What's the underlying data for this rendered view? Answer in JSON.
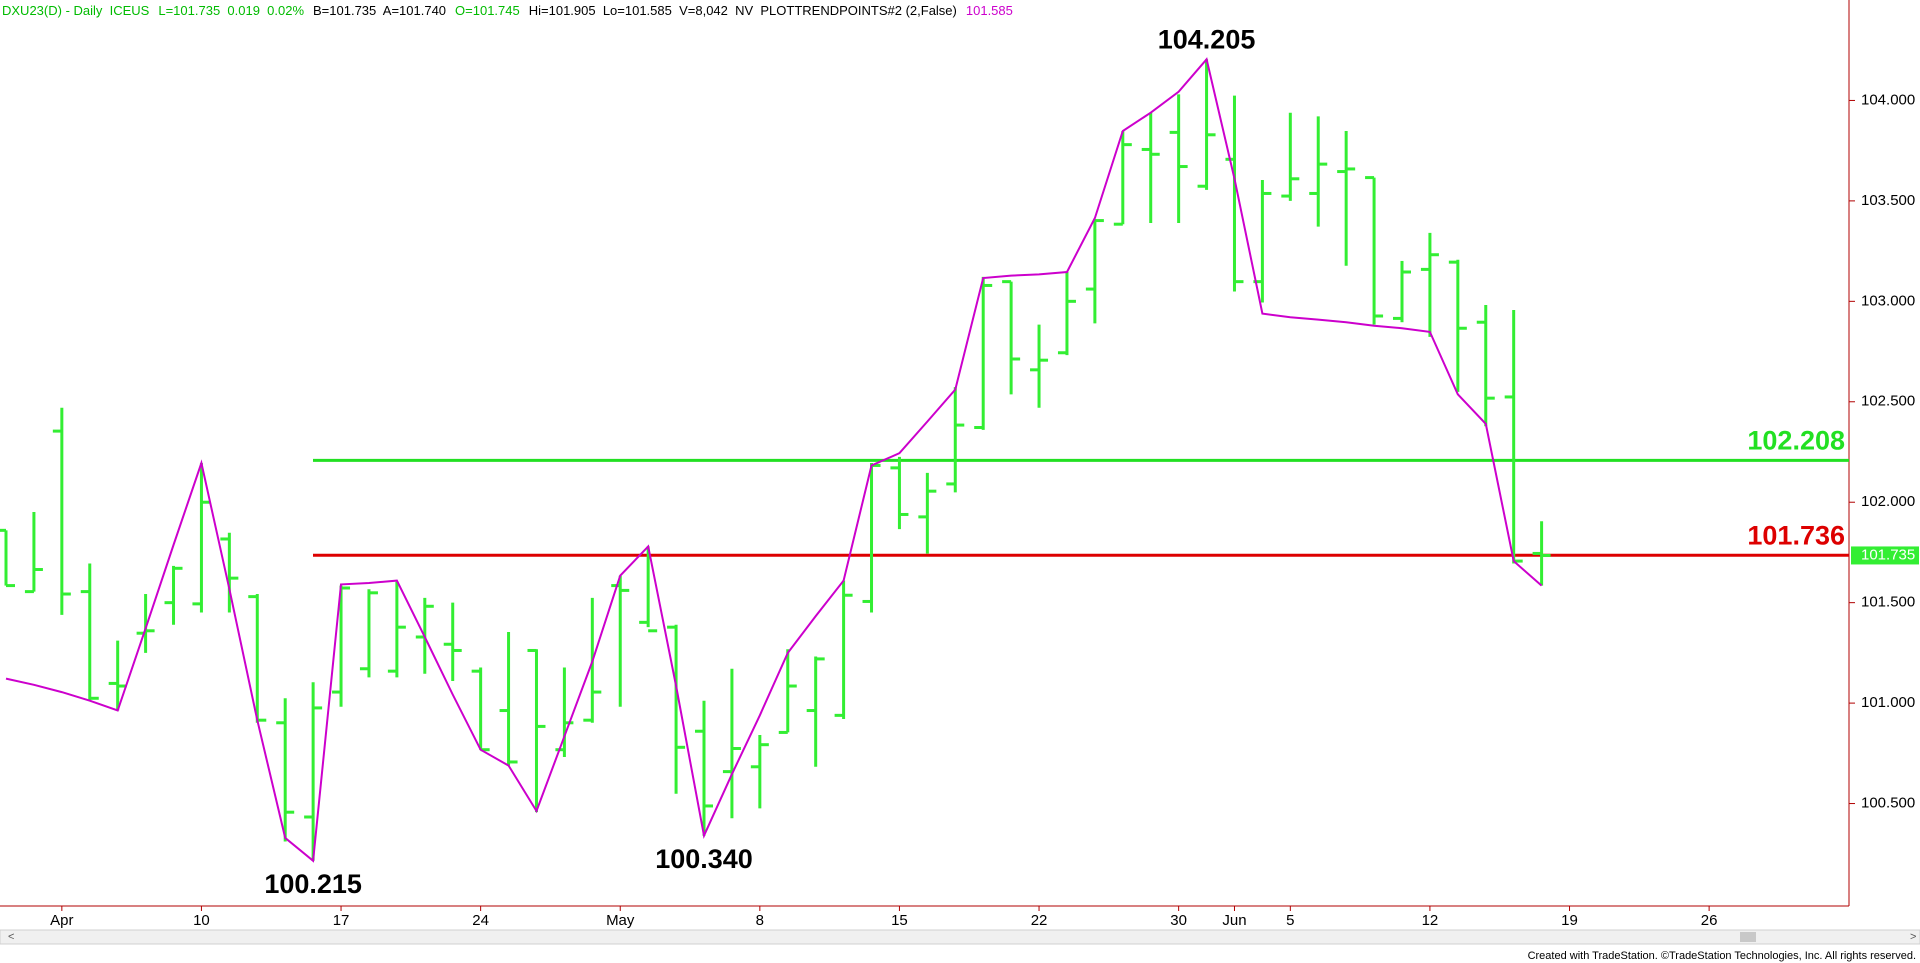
{
  "chart_data": {
    "type": "ohlc",
    "header": [
      {
        "text": "DXU23(D) - Daily  ICEUS",
        "color": "#00bb00"
      },
      {
        "text": "L=101.735  0.019  0.02%",
        "color": "#00bb00"
      },
      {
        "text": "B=101.735  A=101.740",
        "color": "#000000"
      },
      {
        "text": "O=101.745",
        "color": "#00bb00"
      },
      {
        "text": "Hi=101.905  Lo=101.585  V=8,042  NV  PLOTTRENDPOINTS#2 (2,False)",
        "color": "#000000"
      },
      {
        "text": "101.585",
        "color": "#cc00cc"
      }
    ],
    "footer": "Created with TradeStation. ©TradeStation Technologies, Inc. All rights reserved.",
    "categories": [
      null,
      null,
      "Apr",
      null,
      null,
      null,
      null,
      "10",
      null,
      null,
      null,
      null,
      "17",
      null,
      null,
      null,
      null,
      "24",
      null,
      null,
      null,
      null,
      "May",
      null,
      null,
      null,
      null,
      "8",
      null,
      null,
      null,
      null,
      "15",
      null,
      null,
      null,
      null,
      "22",
      null,
      null,
      null,
      null,
      "30",
      null,
      "Jun",
      null,
      "5",
      null,
      null,
      null,
      null,
      "12",
      null,
      null,
      null,
      null,
      "19",
      null,
      null,
      null,
      null,
      "26",
      null,
      null,
      null,
      null
    ],
    "ohlc": {
      "color": "#33ee33",
      "open": [
        101.86,
        101.555,
        102.354,
        101.555,
        101.098,
        101.348,
        101.5,
        101.494,
        101.817,
        101.53,
        100.902,
        100.433,
        101.055,
        101.171,
        101.159,
        101.329,
        101.293,
        101.159,
        100.963,
        101.262,
        100.768,
        100.915,
        101.585,
        101.402,
        101.378,
        100.86,
        100.659,
        100.683,
        100.854,
        100.963,
        100.939,
        101.506,
        102.171,
        101.927,
        102.091,
        102.372,
        103.098,
        102.659,
        102.744,
        103.061,
        103.384,
        103.756,
        103.841,
        103.573,
        103.707,
        103.098,
        103.524,
        103.537,
        103.646,
        103.616,
        102.915,
        103.159,
        103.195,
        102.896,
        102.524,
        101.745,
        null,
        null,
        null,
        null,
        null,
        null,
        null,
        null,
        null,
        null
      ],
      "high": [
        101.86,
        101.951,
        102.47,
        101.695,
        101.311,
        101.543,
        101.683,
        102.195,
        101.848,
        101.543,
        101.024,
        101.104,
        101.585,
        101.567,
        101.604,
        101.524,
        101.5,
        101.177,
        101.354,
        101.268,
        101.177,
        101.524,
        101.634,
        101.78,
        101.39,
        101.012,
        101.171,
        100.841,
        101.268,
        101.232,
        101.61,
        102.195,
        102.226,
        102.146,
        102.573,
        103.122,
        103.098,
        102.884,
        103.146,
        103.409,
        103.848,
        103.939,
        104.03,
        104.205,
        104.024,
        103.604,
        103.939,
        103.921,
        103.848,
        103.616,
        103.201,
        103.341,
        103.207,
        102.982,
        102.957,
        101.905,
        null,
        null,
        null,
        null,
        null,
        null,
        null,
        null,
        null,
        null
      ],
      "low": [
        101.585,
        101.555,
        101.439,
        101.012,
        100.963,
        101.25,
        101.39,
        101.451,
        101.451,
        100.902,
        100.311,
        100.215,
        100.982,
        101.128,
        101.128,
        101.146,
        101.11,
        100.768,
        100.689,
        100.457,
        100.732,
        100.902,
        100.982,
        101.378,
        100.549,
        100.34,
        100.427,
        100.476,
        100.854,
        100.683,
        100.921,
        101.451,
        101.866,
        101.744,
        102.049,
        102.36,
        102.537,
        102.47,
        102.732,
        102.89,
        103.384,
        103.39,
        103.39,
        103.555,
        103.049,
        102.994,
        103.5,
        103.372,
        103.177,
        102.884,
        102.896,
        102.823,
        102.549,
        102.378,
        101.695,
        101.585,
        null,
        null,
        null,
        null,
        null,
        null,
        null,
        null,
        null,
        null
      ],
      "close": [
        101.585,
        101.665,
        101.543,
        101.024,
        101.085,
        101.36,
        101.671,
        102.0,
        101.622,
        100.915,
        100.457,
        100.976,
        101.573,
        101.549,
        101.378,
        101.482,
        101.262,
        100.768,
        100.707,
        100.884,
        100.902,
        101.055,
        101.561,
        101.36,
        100.78,
        100.488,
        100.774,
        100.793,
        101.085,
        101.22,
        101.537,
        102.183,
        101.939,
        102.055,
        102.384,
        103.079,
        102.713,
        102.707,
        103.0,
        103.402,
        103.78,
        103.732,
        103.671,
        103.829,
        103.098,
        103.537,
        103.61,
        103.683,
        103.659,
        102.927,
        103.146,
        103.232,
        102.866,
        102.518,
        101.707,
        101.735,
        null,
        null,
        null,
        null,
        null,
        null,
        null,
        null,
        null,
        null
      ],
      "high_labels": [
        null,
        null,
        null,
        null,
        null,
        null,
        null,
        null,
        null,
        null,
        null,
        null,
        null,
        null,
        null,
        null,
        null,
        null,
        null,
        null,
        null,
        null,
        null,
        null,
        null,
        null,
        null,
        null,
        null,
        null,
        null,
        null,
        null,
        null,
        null,
        null,
        null,
        null,
        null,
        null,
        null,
        null,
        null,
        "104.205",
        null,
        null,
        null,
        null,
        null,
        null,
        null,
        null,
        null,
        null,
        null,
        null,
        null,
        null,
        null,
        null,
        null,
        null,
        null,
        null,
        null,
        null
      ],
      "low_labels": [
        null,
        null,
        null,
        null,
        null,
        null,
        null,
        null,
        null,
        null,
        null,
        "100.215",
        null,
        null,
        null,
        null,
        null,
        null,
        null,
        null,
        null,
        null,
        null,
        null,
        null,
        "100.340",
        null,
        null,
        null,
        null,
        null,
        null,
        null,
        null,
        null,
        null,
        null,
        null,
        null,
        null,
        null,
        null,
        null,
        null,
        null,
        null,
        null,
        null,
        null,
        null,
        null,
        null,
        null,
        null,
        null,
        null,
        null,
        null,
        null,
        null,
        null,
        null,
        null,
        null,
        null,
        null
      ]
    },
    "trend": {
      "color": "#cc00cc",
      "values": [
        101.122,
        101.091,
        101.055,
        101.012,
        100.963,
        101.372,
        101.787,
        102.195,
        101.567,
        100.915,
        100.329,
        100.215,
        101.591,
        101.598,
        101.61,
        101.329,
        101.043,
        100.768,
        100.689,
        100.463,
        100.835,
        101.207,
        101.634,
        101.78,
        101.085,
        100.34,
        100.646,
        100.939,
        101.25,
        101.433,
        101.61,
        102.183,
        102.244,
        102.402,
        102.561,
        103.116,
        103.128,
        103.134,
        103.146,
        103.415,
        103.848,
        103.939,
        104.043,
        104.205,
        103.61,
        102.939,
        102.921,
        102.909,
        102.896,
        102.878,
        102.866,
        102.848,
        102.537,
        102.39,
        101.707,
        101.585,
        null,
        null,
        null,
        null,
        null,
        null,
        null,
        null,
        null,
        null
      ]
    },
    "levels": [
      {
        "value": 102.208,
        "label": "102.208",
        "color": "#22e022"
      },
      {
        "value": 101.736,
        "label": "101.736",
        "color": "#dd0000"
      }
    ],
    "price_tag": {
      "value": 101.735,
      "label": "101.735",
      "color": "#33ee33"
    },
    "ylim": [
      99.99,
      104.5
    ],
    "yticks": [
      {
        "value": 100.5,
        "label": "100.500"
      },
      {
        "value": 101,
        "label": "101.000"
      },
      {
        "value": 101.5,
        "label": "101.500"
      },
      {
        "value": 102,
        "label": "102.000"
      },
      {
        "value": 102.5,
        "label": "102.500"
      },
      {
        "value": 103,
        "label": "103.000"
      },
      {
        "value": 103.5,
        "label": "103.500"
      },
      {
        "value": 104,
        "label": "104.000"
      }
    ]
  }
}
